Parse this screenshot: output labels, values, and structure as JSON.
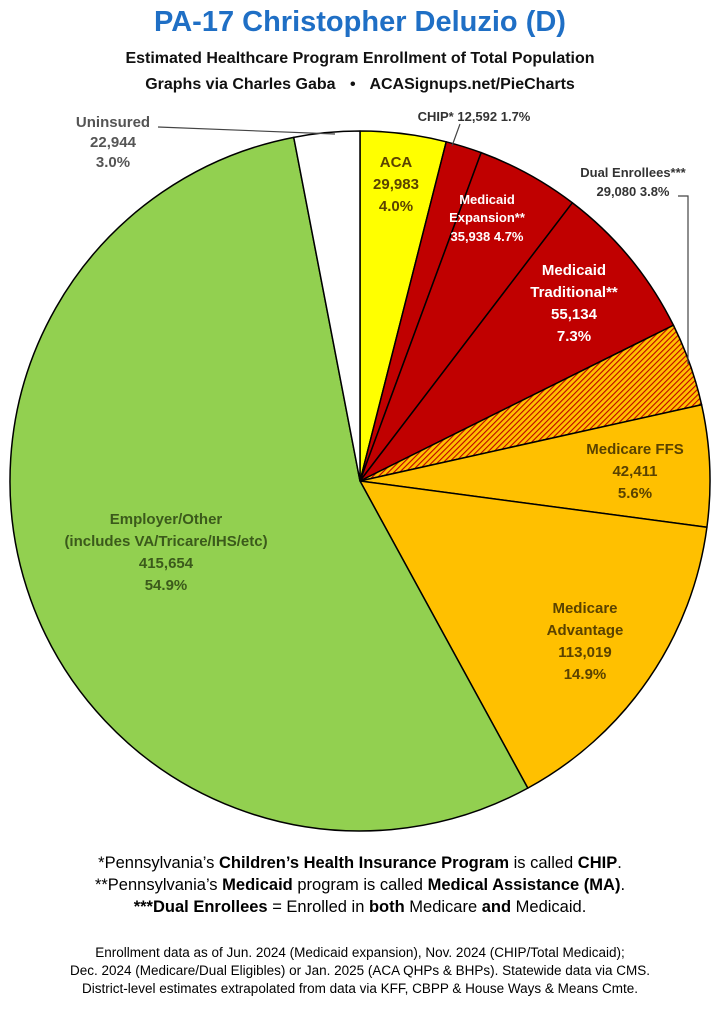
{
  "header": {
    "title": "PA-17 Christopher Deluzio (D)",
    "subtitle1": "Estimated Healthcare Program Enrollment of Total Population",
    "subtitle2_left": "Graphs via Charles Gaba",
    "subtitle2_bullet": "•",
    "subtitle2_right": "ACASignups.net/PieCharts"
  },
  "chart_data": {
    "type": "pie",
    "title": "PA-17 Christopher Deluzio (D)",
    "slices": [
      {
        "name": "ACA",
        "value": 29983,
        "pct": "4.0%",
        "color": "#ffff00",
        "hatch": false
      },
      {
        "name": "CHIP*",
        "value": 12592,
        "pct": "1.7%",
        "color": "#c00000",
        "hatch": false
      },
      {
        "name": "Medicaid Expansion**",
        "value": 35938,
        "pct": "4.7%",
        "color": "#c00000",
        "hatch": false
      },
      {
        "name": "Medicaid Traditional**",
        "value": 55134,
        "pct": "7.3%",
        "color": "#c00000",
        "hatch": false
      },
      {
        "name": "Dual Enrollees***",
        "value": 29080,
        "pct": "3.8%",
        "color": "#ffc000",
        "hatch": true
      },
      {
        "name": "Medicare FFS",
        "value": 42411,
        "pct": "5.6%",
        "color": "#ffc000",
        "hatch": false
      },
      {
        "name": "Medicare Advantage",
        "value": 113019,
        "pct": "14.9%",
        "color": "#ffc000",
        "hatch": false
      },
      {
        "name": "Employer/Other (includes VA/Tricare/IHS/etc)",
        "value": 415654,
        "pct": "54.9%",
        "color": "#92d050",
        "hatch": false
      },
      {
        "name": "Uninsured",
        "value": 22944,
        "pct": "3.0%",
        "color": "#ffffff",
        "hatch": false
      }
    ],
    "labels": {
      "aca": {
        "name": "ACA",
        "value": "29,983",
        "pct": "4.0%"
      },
      "chip": {
        "text": "CHIP* 12,592 1.7%"
      },
      "mexp": {
        "line1": "Medicaid",
        "line2": "Expansion**",
        "line3": "35,938 4.7%"
      },
      "mtrad": {
        "line1": "Medicaid",
        "line2": "Traditional**",
        "value": "55,134",
        "pct": "7.3%"
      },
      "dual": {
        "line1": "Dual Enrollees***",
        "line2": "29,080 3.8%"
      },
      "mffs": {
        "name": "Medicare FFS",
        "value": "42,411",
        "pct": "5.6%"
      },
      "madv": {
        "line1": "Medicare",
        "line2": "Advantage",
        "value": "113,019",
        "pct": "14.9%"
      },
      "emp": {
        "line1": "Employer/Other",
        "line2": "(includes VA/Tricare/IHS/etc)",
        "value": "415,654",
        "pct": "54.9%"
      },
      "unins": {
        "name": "Uninsured",
        "value": "22,944",
        "pct": "3.0%"
      }
    }
  },
  "notes": {
    "n1_a": "*Pennsylvania’s ",
    "n1_b": "Children’s Health Insurance Program",
    "n1_c": " is called ",
    "n1_d": "CHIP",
    "n1_e": ".",
    "n2_a": "**Pennsylvania’s ",
    "n2_b": "Medicaid",
    "n2_c": " program is called ",
    "n2_d": "Medical Assistance (MA)",
    "n2_e": ".",
    "n3_a": "***Dual Enrollees",
    "n3_b": " = Enrolled in ",
    "n3_c": "both",
    "n3_d": " Medicare ",
    "n3_e": "and",
    "n3_f": " Medicaid."
  },
  "source": {
    "line1": "Enrollment data as of Jun. 2024 (Medicaid expansion), Nov. 2024 (CHIP/Total Medicaid);",
    "line2": "Dec. 2024 (Medicare/Dual Eligibles) or Jan. 2025 (ACA QHPs & BHPs). Statewide data via CMS.",
    "line3": "District-level estimates extrapolated from data via KFF, CBPP & House Ways & Means Cmte."
  }
}
